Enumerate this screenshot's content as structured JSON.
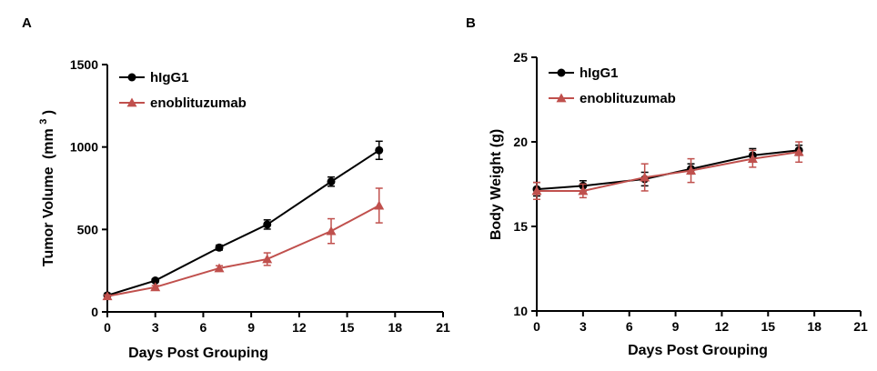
{
  "panel_labels": [
    "A",
    "B"
  ],
  "chart_data": [
    {
      "type": "line",
      "panel": "A",
      "xlabel": "Days Post Grouping",
      "ylabel": "Tumor Volume",
      "ylabel_unit": "(mm",
      "ylabel_sup": "3",
      "ylabel_close": ")",
      "xlim": [
        0,
        21
      ],
      "ylim": [
        0,
        1500
      ],
      "xticks": [
        0,
        3,
        6,
        9,
        12,
        15,
        18,
        21
      ],
      "yticks": [
        0,
        500,
        1000,
        1500
      ],
      "grid": false,
      "legend_position": "top-left",
      "series": [
        {
          "name": "hIgG1",
          "color": "#000000",
          "marker": "circle",
          "x": [
            0,
            3,
            7,
            10,
            14,
            17
          ],
          "y": [
            100,
            190,
            390,
            530,
            790,
            980
          ],
          "err": [
            8,
            10,
            15,
            28,
            28,
            55
          ]
        },
        {
          "name": "enoblituzumab",
          "color": "#c0504d",
          "marker": "triangle",
          "x": [
            0,
            3,
            7,
            10,
            14,
            17
          ],
          "y": [
            95,
            150,
            265,
            320,
            490,
            645
          ],
          "err": [
            8,
            10,
            15,
            38,
            75,
            105
          ]
        }
      ]
    },
    {
      "type": "line",
      "panel": "B",
      "xlabel": "Days Post Grouping",
      "ylabel": "Body Weight (g)",
      "xlim": [
        0,
        21
      ],
      "ylim": [
        10,
        25
      ],
      "xticks": [
        0,
        3,
        6,
        9,
        12,
        15,
        18,
        21
      ],
      "yticks": [
        10,
        15,
        20,
        25
      ],
      "grid": false,
      "legend_position": "top-left",
      "series": [
        {
          "name": "hIgG1",
          "color": "#000000",
          "marker": "circle",
          "x": [
            0,
            3,
            7,
            10,
            14,
            17
          ],
          "y": [
            17.2,
            17.4,
            17.8,
            18.4,
            19.2,
            19.5
          ],
          "err": [
            0.4,
            0.3,
            0.4,
            0.3,
            0.4,
            0.3
          ]
        },
        {
          "name": "enoblituzumab",
          "color": "#c0504d",
          "marker": "triangle",
          "x": [
            0,
            3,
            7,
            10,
            14,
            17
          ],
          "y": [
            17.1,
            17.1,
            17.9,
            18.3,
            19.0,
            19.4
          ],
          "err": [
            0.5,
            0.4,
            0.8,
            0.7,
            0.5,
            0.6
          ]
        }
      ]
    }
  ]
}
